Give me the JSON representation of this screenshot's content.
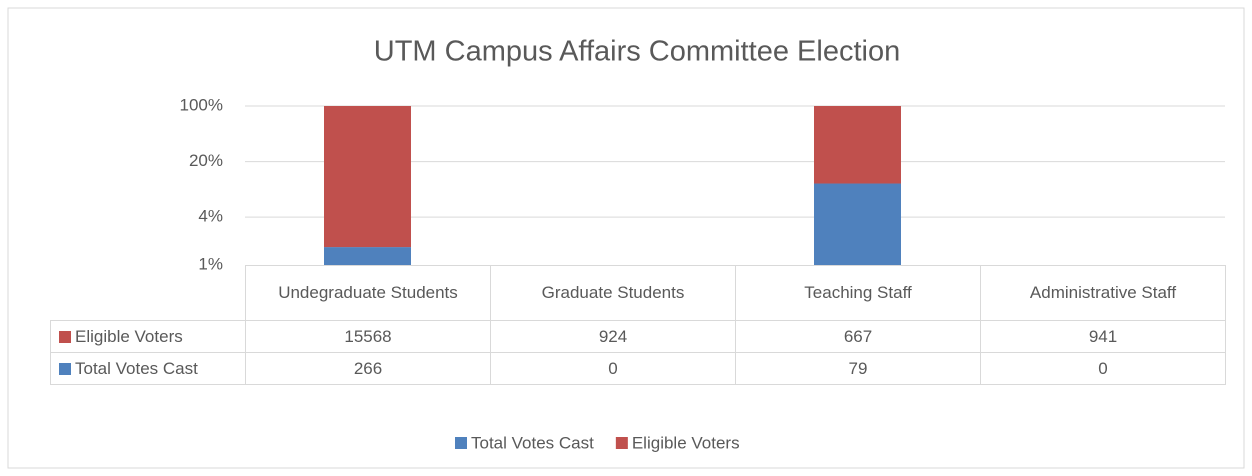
{
  "chart_data": {
    "type": "bar",
    "stacking": "percent",
    "title": "UTM Campus Affairs Committee Election",
    "categories": [
      "Undegraduate Students",
      "Graduate Students",
      "Teaching Staff",
      "Administrative Staff"
    ],
    "series": [
      {
        "name": "Total Votes Cast",
        "color": "#4f81bd",
        "values": [
          266,
          0,
          79,
          0
        ]
      },
      {
        "name": "Eligible Voters",
        "color": "#c0504d",
        "values": [
          15568,
          924,
          667,
          941
        ]
      }
    ],
    "log_scale": true,
    "ylim": [
      1,
      100
    ],
    "yticks": [
      {
        "value": 1,
        "label": "1%"
      },
      {
        "value": 4,
        "label": "4%"
      },
      {
        "value": 20,
        "label": "20%"
      },
      {
        "value": 100,
        "label": "100%"
      }
    ],
    "grid": true,
    "legend": "bottom",
    "data_table": true
  }
}
